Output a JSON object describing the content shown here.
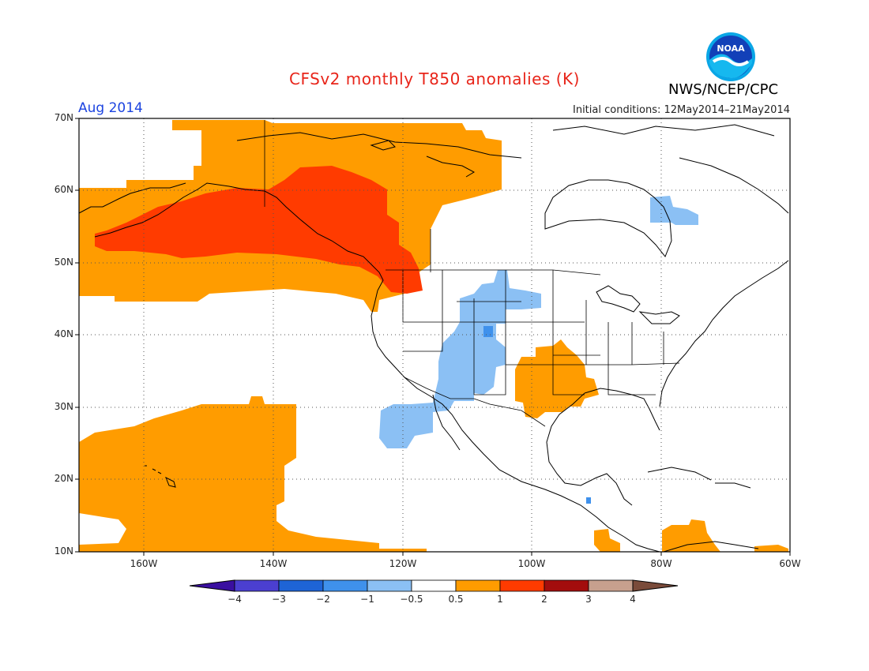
{
  "header": {
    "title": "CFSv2 monthly T850 anomalies (K)",
    "agency": "NWS/NCEP/CPC",
    "logo_text": "NOAA",
    "month": "Aug 2014",
    "initial_conditions": "Initial conditions: 12May2014–21May2014"
  },
  "axes": {
    "lat_labels": [
      "70N",
      "60N",
      "50N",
      "40N",
      "30N",
      "20N",
      "10N"
    ],
    "lon_labels": [
      "160W",
      "140W",
      "120W",
      "100W",
      "80W",
      "60W"
    ]
  },
  "map": {
    "region": "North America and Northeast Pacific",
    "lon_range": [
      -170,
      -60
    ],
    "lat_range": [
      10,
      70
    ],
    "grid": "dotted every 20 deg lon / 10 deg lat"
  },
  "colorbar": {
    "labels": [
      "−4",
      "−3",
      "−2",
      "−1",
      "−0.5",
      "0.5",
      "1",
      "2",
      "3",
      "4"
    ],
    "colors": [
      "#3a0fa0",
      "#4b3fd0",
      "#1e64d6",
      "#3f91ec",
      "#8bc0f4",
      "#ffffff",
      "#ff9c00",
      "#ff3b00",
      "#a30d0d",
      "#c7a08e",
      "#7a4b3a"
    ]
  }
}
